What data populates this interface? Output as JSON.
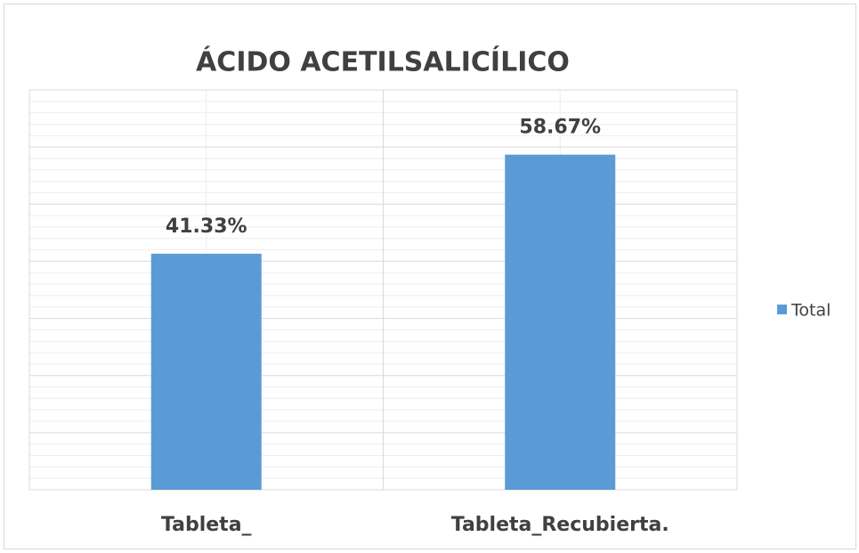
{
  "chart_data": {
    "type": "bar",
    "title": "ÁCIDO ACETILSALICÍLICO",
    "categories": [
      "Tableta_",
      "Tableta_Recubierta."
    ],
    "series": [
      {
        "name": "Total",
        "color": "#5b9bd5",
        "values": [
          41.33,
          58.67
        ]
      }
    ],
    "value_labels": [
      "41.33%",
      "58.67%"
    ],
    "ylim": [
      0,
      70
    ],
    "yticks": [
      0,
      10,
      20,
      30,
      40,
      50,
      60,
      70
    ],
    "grid": true,
    "legend": "right"
  }
}
